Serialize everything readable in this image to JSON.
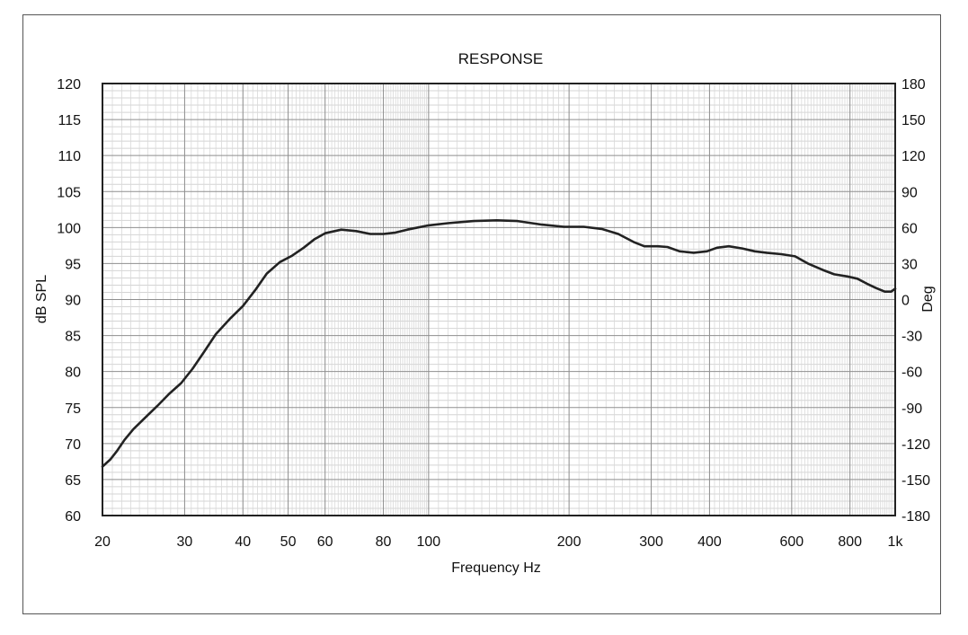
{
  "chart_data": {
    "type": "line",
    "title": "RESPONSE",
    "xlabel": "Frequency Hz",
    "ylabel": "dB SPL",
    "y2label": "Deg",
    "x_scale": "log",
    "xlim": [
      20,
      1000
    ],
    "ylim": [
      60,
      120
    ],
    "y2lim": [
      -180,
      180
    ],
    "grid": true,
    "x_ticks": [
      {
        "value": 20,
        "label": "20"
      },
      {
        "value": 30,
        "label": "30"
      },
      {
        "value": 40,
        "label": "40"
      },
      {
        "value": 50,
        "label": "50"
      },
      {
        "value": 60,
        "label": "60"
      },
      {
        "value": 80,
        "label": "80"
      },
      {
        "value": 100,
        "label": "100"
      },
      {
        "value": 200,
        "label": "200"
      },
      {
        "value": 300,
        "label": "300"
      },
      {
        "value": 400,
        "label": "400"
      },
      {
        "value": 600,
        "label": "600"
      },
      {
        "value": 800,
        "label": "800"
      },
      {
        "value": 1000,
        "label": "1k"
      }
    ],
    "y_ticks": [
      60,
      65,
      70,
      75,
      80,
      85,
      90,
      95,
      100,
      105,
      110,
      115,
      120
    ],
    "y2_ticks": [
      -180,
      -150,
      -120,
      -90,
      -60,
      -30,
      0,
      30,
      60,
      90,
      120,
      150,
      180
    ],
    "series": [
      {
        "values": [
          [
            20,
            66.8
          ],
          [
            20.8,
            67.8
          ],
          [
            21.5,
            69.0
          ],
          [
            22.3,
            70.5
          ],
          [
            23.3,
            72.0
          ],
          [
            24.6,
            73.5
          ],
          [
            26.2,
            75.2
          ],
          [
            27.8,
            76.9
          ],
          [
            29.5,
            78.4
          ],
          [
            31.2,
            80.4
          ],
          [
            33.0,
            82.7
          ],
          [
            35.0,
            85.2
          ],
          [
            37.5,
            87.3
          ],
          [
            40.0,
            89.1
          ],
          [
            42.5,
            91.3
          ],
          [
            45.0,
            93.6
          ],
          [
            48.0,
            95.2
          ],
          [
            51.0,
            96.1
          ],
          [
            54.0,
            97.2
          ],
          [
            57.0,
            98.4
          ],
          [
            60.0,
            99.2
          ],
          [
            65.0,
            99.7
          ],
          [
            70.0,
            99.5
          ],
          [
            75.0,
            99.1
          ],
          [
            80.0,
            99.1
          ],
          [
            85.0,
            99.3
          ],
          [
            90.0,
            99.7
          ],
          [
            100,
            100.3
          ],
          [
            110,
            100.6
          ],
          [
            125,
            100.9
          ],
          [
            140,
            101.0
          ],
          [
            155,
            100.9
          ],
          [
            175,
            100.4
          ],
          [
            195,
            100.1
          ],
          [
            215,
            100.1
          ],
          [
            235,
            99.8
          ],
          [
            255,
            99.1
          ],
          [
            275,
            98.0
          ],
          [
            290,
            97.4
          ],
          [
            310,
            97.4
          ],
          [
            325,
            97.3
          ],
          [
            345,
            96.7
          ],
          [
            370,
            96.5
          ],
          [
            395,
            96.7
          ],
          [
            415,
            97.2
          ],
          [
            440,
            97.4
          ],
          [
            470,
            97.1
          ],
          [
            500,
            96.7
          ],
          [
            530,
            96.5
          ],
          [
            570,
            96.3
          ],
          [
            610,
            96.0
          ],
          [
            650,
            95.0
          ],
          [
            700,
            94.1
          ],
          [
            740,
            93.5
          ],
          [
            790,
            93.2
          ],
          [
            830,
            92.9
          ],
          [
            870,
            92.2
          ],
          [
            910,
            91.6
          ],
          [
            950,
            91.1
          ],
          [
            980,
            91.1
          ],
          [
            1000,
            91.5
          ]
        ]
      }
    ]
  }
}
